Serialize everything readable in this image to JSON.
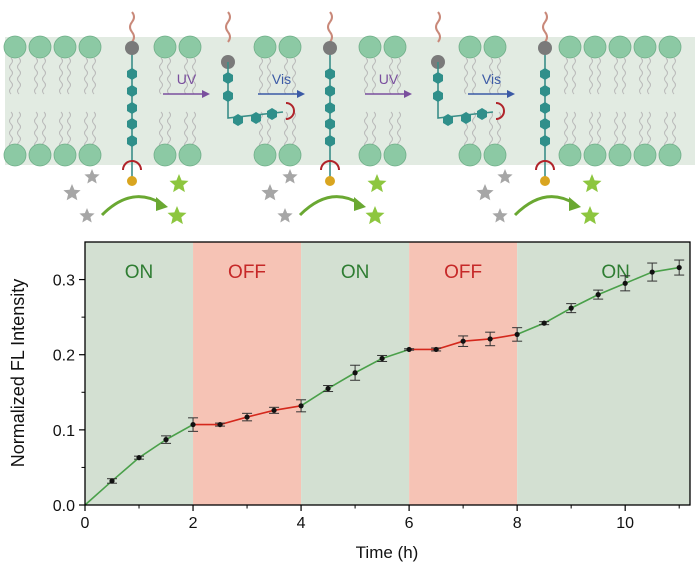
{
  "schematic": {
    "steps": [
      {
        "label": "UV",
        "color": "#7a4f9e"
      },
      {
        "label": "Vis",
        "color": "#3b5aa6"
      },
      {
        "label": "UV",
        "color": "#7a4f9e"
      },
      {
        "label": "Vis",
        "color": "#3b5aa6"
      }
    ],
    "colors": {
      "membrane": "#e2ebe2",
      "lipid_head": "#8cc9a4",
      "bead": "#2f8f8a",
      "head_sphere": "#7a7a7a",
      "tail": "#c9897a",
      "star_substrate": "#a6a6a6",
      "star_product": "#8dc63f",
      "arrow": "#6aa832",
      "ligand": "#b0242a"
    }
  },
  "chart_data": {
    "type": "line",
    "xlabel": "Time (h)",
    "ylabel": "Normalized FL Intensity",
    "xlim": [
      0,
      11.2
    ],
    "ylim": [
      0,
      0.35
    ],
    "xticks": [
      "0",
      "2",
      "4",
      "6",
      "8",
      "10"
    ],
    "yticks": [
      "0.0",
      "0.1",
      "0.2",
      "0.3"
    ],
    "regions": [
      {
        "label": "ON",
        "start": 0,
        "end": 2,
        "state": "on"
      },
      {
        "label": "OFF",
        "start": 2,
        "end": 4,
        "state": "off"
      },
      {
        "label": "ON",
        "start": 4,
        "end": 6,
        "state": "on"
      },
      {
        "label": "OFF",
        "start": 6,
        "end": 8,
        "state": "off"
      },
      {
        "label": "ON",
        "start": 8,
        "end": 11.2,
        "state": "on"
      }
    ],
    "series": [
      {
        "name": "Normalized FL Intensity",
        "x": [
          0,
          0.5,
          1,
          1.5,
          2,
          2.5,
          3,
          3.5,
          4,
          4.5,
          5,
          5.5,
          6,
          6.5,
          7,
          7.5,
          8,
          8.5,
          9,
          9.5,
          10,
          10.5,
          11
        ],
        "y": [
          0.0,
          0.032,
          0.063,
          0.087,
          0.107,
          0.107,
          0.117,
          0.126,
          0.132,
          0.155,
          0.176,
          0.195,
          0.207,
          0.207,
          0.218,
          0.221,
          0.227,
          0.242,
          0.262,
          0.28,
          0.295,
          0.31,
          0.316
        ],
        "err": [
          0.0,
          0.003,
          0.002,
          0.005,
          0.009,
          0.002,
          0.005,
          0.004,
          0.008,
          0.004,
          0.01,
          0.004,
          0.001,
          0.002,
          0.007,
          0.009,
          0.009,
          0.002,
          0.006,
          0.006,
          0.01,
          0.012,
          0.01
        ]
      }
    ],
    "colors": {
      "on_region": "#d3e0d2",
      "off_region": "#f6c3b5",
      "on_line": "#4aa04a",
      "off_line": "#d4281c",
      "on_text": "#2e7d32",
      "off_text": "#c62828",
      "marker": "#111111"
    }
  }
}
